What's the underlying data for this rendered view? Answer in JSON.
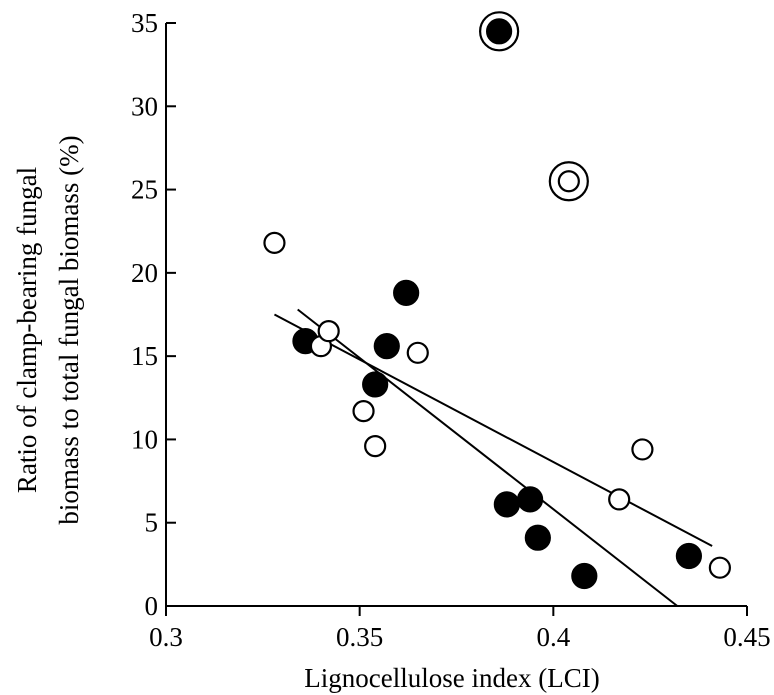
{
  "chart_data": {
    "type": "scatter",
    "title": "",
    "xlabel": "Lignocellulose index (LCI)",
    "ylabel_lines": [
      "Ratio of clamp-bearing fungal",
      "biomass to total fungal biomass (%)"
    ],
    "xlim": [
      0.3,
      0.45
    ],
    "ylim": [
      0,
      35
    ],
    "x_ticks": [
      0.3,
      0.35,
      0.4,
      0.45
    ],
    "x_tick_labels": [
      "0.3",
      "0.35",
      "0.4",
      "0.45"
    ],
    "y_ticks": [
      0,
      5,
      10,
      15,
      20,
      25,
      30,
      35
    ],
    "y_tick_labels": [
      "0",
      "5",
      "10",
      "15",
      "20",
      "25",
      "30",
      "35"
    ],
    "grid": false,
    "series": [
      {
        "marker": "filled-circle",
        "color": "#000000",
        "points": [
          [
            0.336,
            15.9
          ],
          [
            0.354,
            13.3
          ],
          [
            0.357,
            15.6
          ],
          [
            0.362,
            18.8
          ],
          [
            0.388,
            6.1
          ],
          [
            0.394,
            6.4
          ],
          [
            0.396,
            4.1
          ],
          [
            0.408,
            1.8
          ],
          [
            0.435,
            3.0
          ],
          [
            0.386,
            34.5
          ]
        ]
      },
      {
        "marker": "open-circle",
        "color": "#000000",
        "points": [
          [
            0.328,
            21.8
          ],
          [
            0.34,
            15.6
          ],
          [
            0.342,
            16.5
          ],
          [
            0.351,
            11.7
          ],
          [
            0.354,
            9.6
          ],
          [
            0.365,
            15.2
          ],
          [
            0.404,
            25.5
          ],
          [
            0.417,
            6.4
          ],
          [
            0.423,
            9.4
          ],
          [
            0.443,
            2.3
          ]
        ]
      }
    ],
    "outliers_ringed": [
      [
        0.386,
        34.5
      ],
      [
        0.404,
        25.5
      ]
    ],
    "trend_lines": [
      {
        "from": [
          0.328,
          17.5
        ],
        "to": [
          0.441,
          3.6
        ]
      },
      {
        "from": [
          0.334,
          17.8
        ],
        "to": [
          0.432,
          0.0
        ]
      }
    ]
  }
}
